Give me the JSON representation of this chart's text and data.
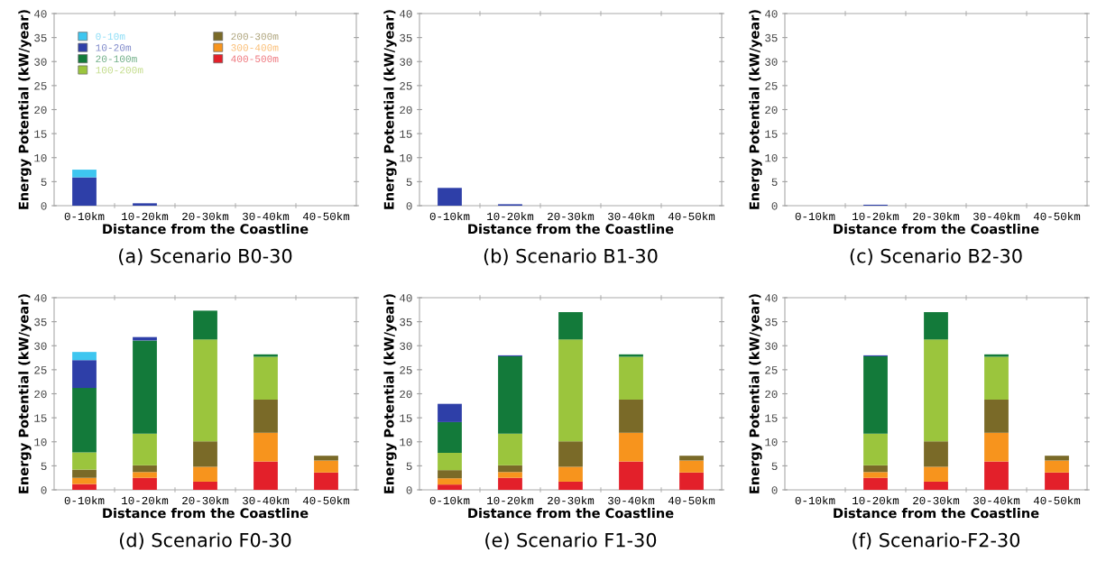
{
  "chart_data": [
    {
      "type": "bar",
      "stacked": true,
      "title": "(a) Scenario B0-30",
      "xlabel": "Distance from the Coastline",
      "ylabel": "Energy Potential (kW/year)",
      "categories": [
        "0-10km",
        "10-20km",
        "20-30km",
        "30-40km",
        "40-50km"
      ],
      "ylim": [
        0,
        40
      ],
      "yticks": [
        0,
        5,
        10,
        15,
        20,
        25,
        30,
        35,
        40
      ],
      "grid": false,
      "legend": "top left",
      "series": [
        {
          "name": "400-500m",
          "color": "#e3202a",
          "values": [
            null,
            null,
            null,
            null,
            null
          ]
        },
        {
          "name": "300-400m",
          "color": "#f7941d",
          "values": [
            null,
            null,
            null,
            null,
            null
          ]
        },
        {
          "name": "200-300m",
          "color": "#7a6a28",
          "values": [
            null,
            null,
            null,
            null,
            null
          ]
        },
        {
          "name": "100-200m",
          "color": "#9bc53d",
          "values": [
            null,
            null,
            null,
            null,
            null
          ]
        },
        {
          "name": "20-100m",
          "color": "#137a3a",
          "values": [
            null,
            null,
            null,
            null,
            null
          ]
        },
        {
          "name": "10-20m",
          "color": "#2e3fa8",
          "values": [
            5.9,
            0.5,
            null,
            null,
            null
          ]
        },
        {
          "name": "0-10m",
          "color": "#3ec6f0",
          "values": [
            1.6,
            null,
            null,
            null,
            null
          ]
        }
      ]
    },
    {
      "type": "bar",
      "stacked": true,
      "title": "(b) Scenario B1-30",
      "xlabel": "Distance from the Coastline",
      "ylabel": "Energy Potential (kW/year)",
      "categories": [
        "0-10km",
        "10-20km",
        "20-30km",
        "30-40km",
        "40-50km"
      ],
      "ylim": [
        0,
        40
      ],
      "yticks": [
        0,
        5,
        10,
        15,
        20,
        25,
        30,
        35,
        40
      ],
      "grid": false,
      "series": [
        {
          "color": "#2e3fa8",
          "values": [
            3.7,
            0.3,
            null,
            null,
            null
          ]
        }
      ]
    },
    {
      "type": "bar",
      "stacked": true,
      "title": "(c) Scenario B2-30",
      "xlabel": "Distance from the Coastline",
      "ylabel": "Energy Potential (kW/year)",
      "categories": [
        "0-10km",
        "10-20km",
        "20-30km",
        "30-40km",
        "40-50km"
      ],
      "ylim": [
        0,
        40
      ],
      "yticks": [
        0,
        5,
        10,
        15,
        20,
        25,
        30,
        35,
        40
      ],
      "grid": false,
      "series": [
        {
          "color": "#2e3fa8",
          "values": [
            null,
            0.2,
            null,
            null,
            null
          ]
        }
      ]
    },
    {
      "type": "bar",
      "stacked": true,
      "title": "(d) Scenario F0-30",
      "xlabel": "Distance from the Coastline",
      "ylabel": "Energy Potential (kW/year)",
      "categories": [
        "0-10km",
        "10-20km",
        "20-30km",
        "30-40km",
        "40-50km"
      ],
      "ylim": [
        0,
        40
      ],
      "yticks": [
        0,
        5,
        10,
        15,
        20,
        25,
        30,
        35,
        40
      ],
      "grid": false,
      "series": [
        {
          "color": "#e3202a",
          "values": [
            1.2,
            2.5,
            1.7,
            5.9,
            3.6
          ]
        },
        {
          "color": "#f7941d",
          "values": [
            1.3,
            1.2,
            3.1,
            6.0,
            2.5
          ]
        },
        {
          "color": "#7a6a28",
          "values": [
            1.7,
            1.4,
            5.3,
            6.9,
            1.0
          ]
        },
        {
          "color": "#9bc53d",
          "values": [
            3.6,
            6.6,
            21.2,
            8.9,
            null
          ]
        },
        {
          "color": "#137a3a",
          "values": [
            13.4,
            19.4,
            6.0,
            0.5,
            null
          ]
        },
        {
          "color": "#2e3fa8",
          "values": [
            5.8,
            0.7,
            null,
            null,
            null
          ]
        },
        {
          "color": "#3ec6f0",
          "values": [
            1.7,
            null,
            null,
            null,
            null
          ]
        }
      ]
    },
    {
      "type": "bar",
      "stacked": true,
      "title": "(e) Scenario F1-30",
      "xlabel": "Distance from the Coastline",
      "ylabel": "Energy Potential (kW/year)",
      "categories": [
        "0-10km",
        "10-20km",
        "20-30km",
        "30-40km",
        "40-50km"
      ],
      "ylim": [
        0,
        40
      ],
      "yticks": [
        0,
        5,
        10,
        15,
        20,
        25,
        30,
        35,
        40
      ],
      "grid": false,
      "series": [
        {
          "color": "#e3202a",
          "values": [
            1.1,
            2.5,
            1.7,
            5.9,
            3.6
          ]
        },
        {
          "color": "#f7941d",
          "values": [
            1.3,
            1.2,
            3.1,
            6.0,
            2.5
          ]
        },
        {
          "color": "#7a6a28",
          "values": [
            1.7,
            1.4,
            5.3,
            6.9,
            1.0
          ]
        },
        {
          "color": "#9bc53d",
          "values": [
            3.6,
            6.6,
            21.2,
            8.9,
            null
          ]
        },
        {
          "color": "#137a3a",
          "values": [
            6.4,
            16.1,
            5.7,
            0.5,
            null
          ]
        },
        {
          "color": "#2e3fa8",
          "values": [
            3.8,
            0.2,
            null,
            null,
            null
          ]
        }
      ]
    },
    {
      "type": "bar",
      "stacked": true,
      "title": "(f) Scenario-F2-30",
      "xlabel": "Distance from the Coastline",
      "ylabel": "Energy Potential (kW/year)",
      "categories": [
        "0-10km",
        "10-20km",
        "20-30km",
        "30-40km",
        "40-50km"
      ],
      "ylim": [
        0,
        40
      ],
      "yticks": [
        0,
        5,
        10,
        15,
        20,
        25,
        30,
        35,
        40
      ],
      "grid": false,
      "series": [
        {
          "color": "#e3202a",
          "values": [
            null,
            2.5,
            1.7,
            5.9,
            3.6
          ]
        },
        {
          "color": "#f7941d",
          "values": [
            null,
            1.2,
            3.1,
            6.0,
            2.5
          ]
        },
        {
          "color": "#7a6a28",
          "values": [
            null,
            1.4,
            5.3,
            6.9,
            1.0
          ]
        },
        {
          "color": "#9bc53d",
          "values": [
            null,
            6.6,
            21.2,
            8.9,
            null
          ]
        },
        {
          "color": "#137a3a",
          "values": [
            null,
            16.1,
            5.7,
            0.5,
            null
          ]
        },
        {
          "color": "#2e3fa8",
          "values": [
            null,
            0.2,
            null,
            null,
            null
          ]
        }
      ]
    }
  ]
}
